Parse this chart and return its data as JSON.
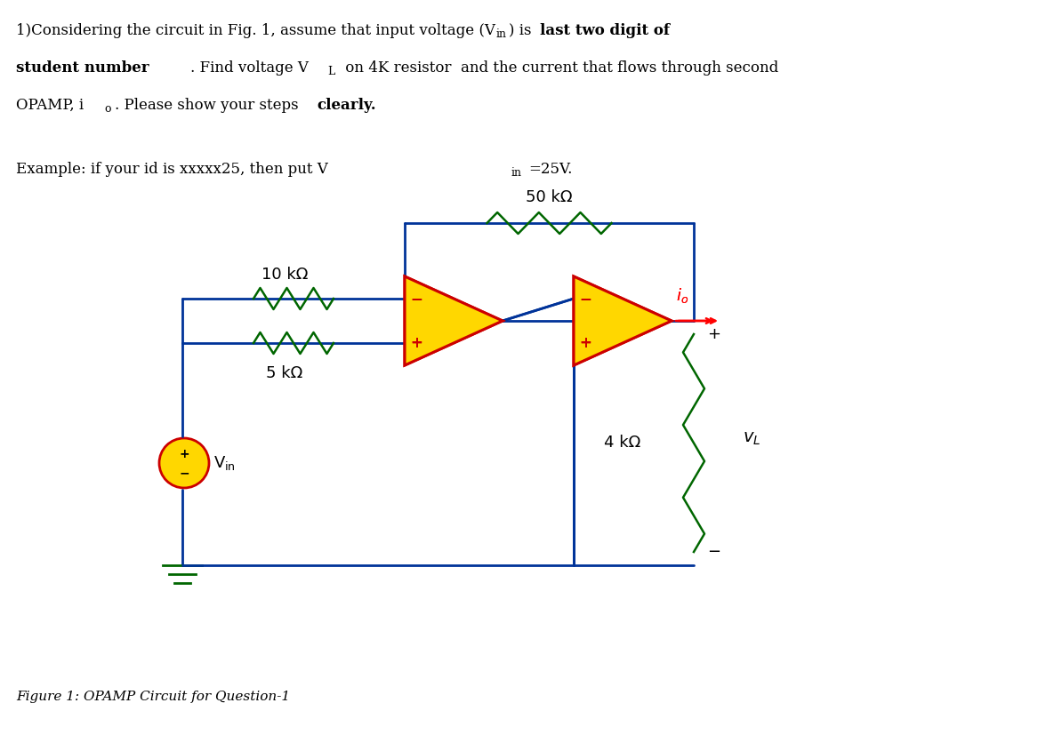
{
  "title_text": "1)Considering the circuit in Fig. 1, assume that input voltage (V",
  "title_bold_parts": [
    "last two digit of\nstudent number"
  ],
  "example_text": "Example: if your id is xxxxx25, then put V",
  "figure_caption": "Figure 1: OPAMP Circuit for Question-1",
  "resistor_10k_label": "10 kΩ",
  "resistor_5k_label": "5 kΩ",
  "resistor_50k_label": "50 kΩ",
  "resistor_4k_label": "4 kΩ",
  "vin_label": "V",
  "io_label": "i",
  "vl_label": "v",
  "wire_color": "#003399",
  "resistor_color": "#006600",
  "opamp_fill": "#FFD700",
  "opamp_border": "#CC0000",
  "source_fill": "#FFD700",
  "source_border": "#CC0000",
  "text_color": "#000000",
  "red_text_color": "#CC0000",
  "background": "#ffffff"
}
